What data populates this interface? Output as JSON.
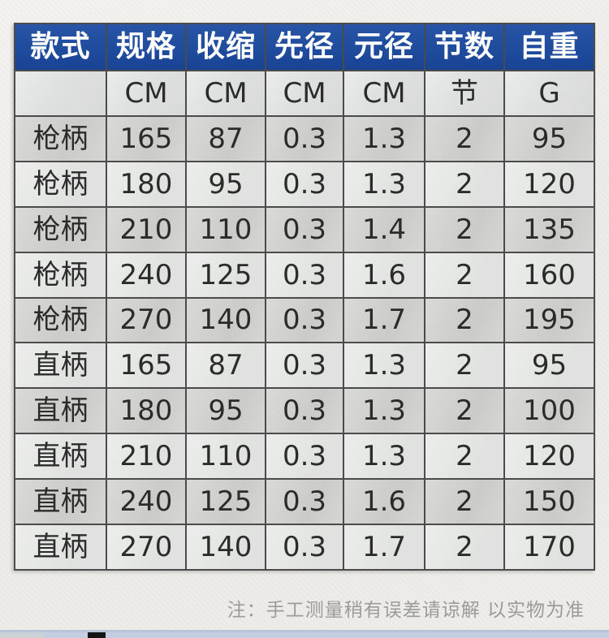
{
  "page": {
    "background": "#efeeeb",
    "note": "注：手工测量稍有误差请谅解 以实物为准",
    "note_color": "#9b9b9b"
  },
  "colors": {
    "header_bg": "#1b4aa1",
    "header_text": "#ffffff",
    "border": "#4b4b4b",
    "row_dark": "#d1d2d0",
    "row_light": "#e4e6e4",
    "units_row_bg": "#dfe1e0",
    "next_image_strip": "#c3cfe0"
  },
  "chart_data": {
    "type": "table",
    "title": "",
    "columns": [
      "款式",
      "规格",
      "收缩",
      "先径",
      "元径",
      "节数",
      "自重"
    ],
    "units": [
      "",
      "CM",
      "CM",
      "CM",
      "CM",
      "节",
      "G"
    ],
    "rows": [
      [
        "枪柄",
        "165",
        "87",
        "0.3",
        "1.3",
        "2",
        "95"
      ],
      [
        "枪柄",
        "180",
        "95",
        "0.3",
        "1.3",
        "2",
        "120"
      ],
      [
        "枪柄",
        "210",
        "110",
        "0.3",
        "1.4",
        "2",
        "135"
      ],
      [
        "枪柄",
        "240",
        "125",
        "0.3",
        "1.6",
        "2",
        "160"
      ],
      [
        "枪柄",
        "270",
        "140",
        "0.3",
        "1.7",
        "2",
        "195"
      ],
      [
        "直柄",
        "165",
        "87",
        "0.3",
        "1.3",
        "2",
        "95"
      ],
      [
        "直柄",
        "180",
        "95",
        "0.3",
        "1.3",
        "2",
        "100"
      ],
      [
        "直柄",
        "210",
        "110",
        "0.3",
        "1.3",
        "2",
        "120"
      ],
      [
        "直柄",
        "240",
        "125",
        "0.3",
        "1.6",
        "2",
        "150"
      ],
      [
        "直柄",
        "270",
        "140",
        "0.3",
        "1.7",
        "2",
        "170"
      ]
    ],
    "note": "注：手工测量稍有误差请谅解 以实物为准",
    "layout": {
      "grid": true,
      "striped_rows": true,
      "header_position": "top"
    }
  }
}
